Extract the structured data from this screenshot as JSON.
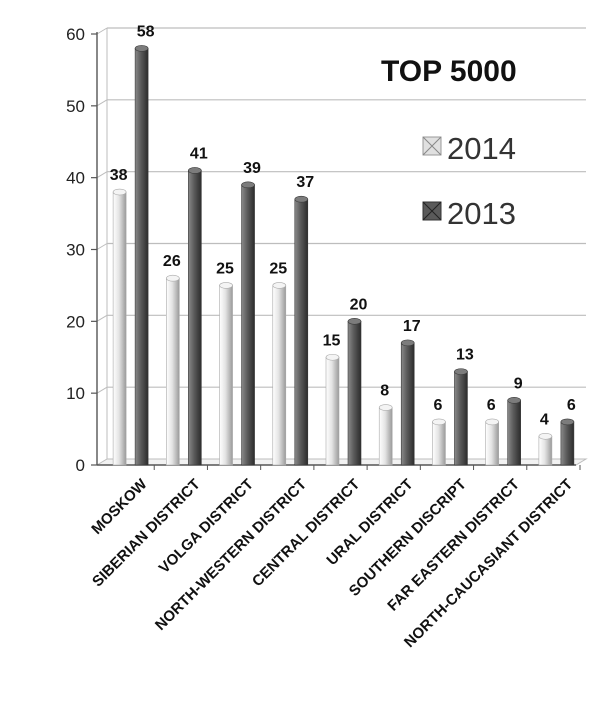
{
  "chart_data": {
    "type": "bar",
    "title": "TOP 5000",
    "categories": [
      "MOSKOW",
      "SIBERIAN DISTRICT",
      "VOLGA DISTRICT",
      "NORTH-WESTERN DISTRICT",
      "CENTRAL DISTRICT",
      "URAL DISTRICT",
      "SOUTHERN DISCRIPT",
      "FAR EASTERN DISTRICT",
      "NORTH-CAUCASIANT DISTRICT"
    ],
    "series": [
      {
        "name": "2014",
        "values": [
          38,
          26,
          25,
          25,
          15,
          8,
          6,
          6,
          4
        ],
        "color": "#d6d6d6"
      },
      {
        "name": "2013",
        "values": [
          58,
          41,
          39,
          37,
          20,
          17,
          13,
          9,
          6
        ],
        "color": "#5a5a5a"
      }
    ],
    "ylim": [
      0,
      60
    ],
    "yticks": [
      0,
      10,
      20,
      30,
      40,
      50,
      60
    ],
    "grid": true,
    "legend": "top-right",
    "xlabel": "",
    "ylabel": ""
  }
}
